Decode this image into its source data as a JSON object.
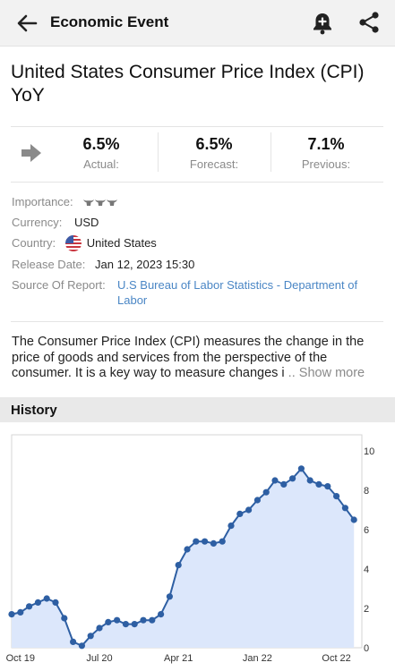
{
  "topbar": {
    "title": "Economic Event",
    "back_icon": "arrow-left-icon",
    "bell_icon": "bell-plus-icon",
    "share_icon": "share-icon"
  },
  "event": {
    "title": "United States Consumer Price Index (CPI) YoY"
  },
  "stats": {
    "actual": {
      "value": "6.5%",
      "label": "Actual:"
    },
    "forecast": {
      "value": "6.5%",
      "label": "Forecast:"
    },
    "previous": {
      "value": "7.1%",
      "label": "Previous:"
    }
  },
  "details": {
    "importance_label": "Importance:",
    "importance_level": 3,
    "currency_label": "Currency:",
    "currency_value": "USD",
    "country_label": "Country:",
    "country_value": "United States",
    "release_label": "Release Date:",
    "release_value": "Jan 12, 2023 15:30",
    "source_label": "Source Of Report:",
    "source_value": "U.S Bureau of Labor Statistics - Department of Labor"
  },
  "description": {
    "text": "The Consumer Price Index (CPI) measures the change in the price of goods and services from the perspective of the consumer. It is a key way to measure changes i",
    "show_more": " .. Show more"
  },
  "history": {
    "title": "History"
  },
  "colors": {
    "line": "#2e5fa3",
    "fill": "#dce7fb",
    "link": "#4a86c5"
  },
  "chart_data": {
    "type": "area",
    "title": "",
    "xlabel": "",
    "ylabel": "",
    "ylim": [
      0,
      10
    ],
    "y_ticks": [
      "0",
      "2",
      "4",
      "6",
      "8",
      "10"
    ],
    "x_tick_labels": [
      "Oct 19",
      "Jul 20",
      "Apr 21",
      "Jan 22",
      "Oct 22"
    ],
    "x_tick_index": [
      1,
      10,
      19,
      28,
      37
    ],
    "grid": false,
    "series": [
      {
        "values": [
          1.7,
          1.8,
          2.1,
          2.3,
          2.5,
          2.3,
          1.5,
          0.3,
          0.1,
          0.6,
          1.0,
          1.3,
          1.4,
          1.2,
          1.2,
          1.4,
          1.4,
          1.7,
          2.6,
          4.2,
          5.0,
          5.4,
          5.4,
          5.3,
          5.4,
          6.2,
          6.8,
          7.0,
          7.5,
          7.9,
          8.5,
          8.3,
          8.6,
          9.1,
          8.5,
          8.3,
          8.2,
          7.7,
          7.1,
          6.5
        ]
      }
    ]
  }
}
